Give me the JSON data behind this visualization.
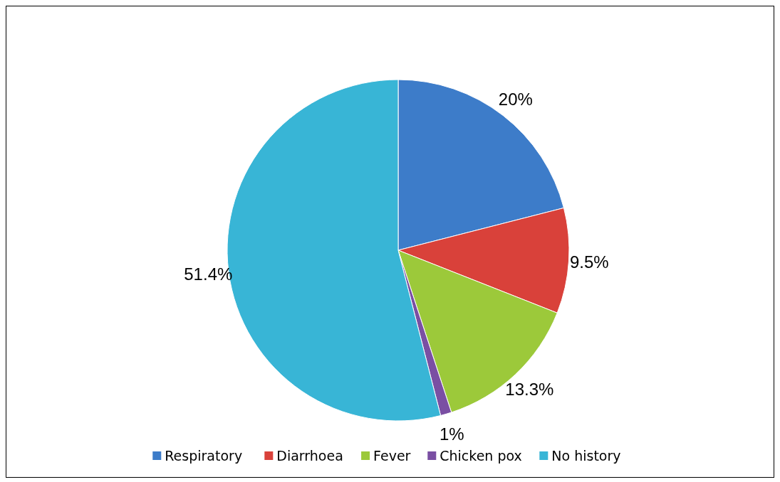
{
  "chart_data": {
    "type": "pie",
    "categories": [
      "Respiratory",
      "Diarrhoea",
      "Fever",
      "Chicken pox",
      "No history"
    ],
    "values": [
      20,
      9.5,
      13.3,
      1,
      51.4
    ],
    "colors": [
      "#3d7cc9",
      "#d9413a",
      "#9cc93a",
      "#7a4fa3",
      "#38b5d6"
    ],
    "value_labels": [
      "20%",
      "9.5%",
      "13.3%",
      "1%",
      "51.4%"
    ],
    "legend": "bottom"
  }
}
